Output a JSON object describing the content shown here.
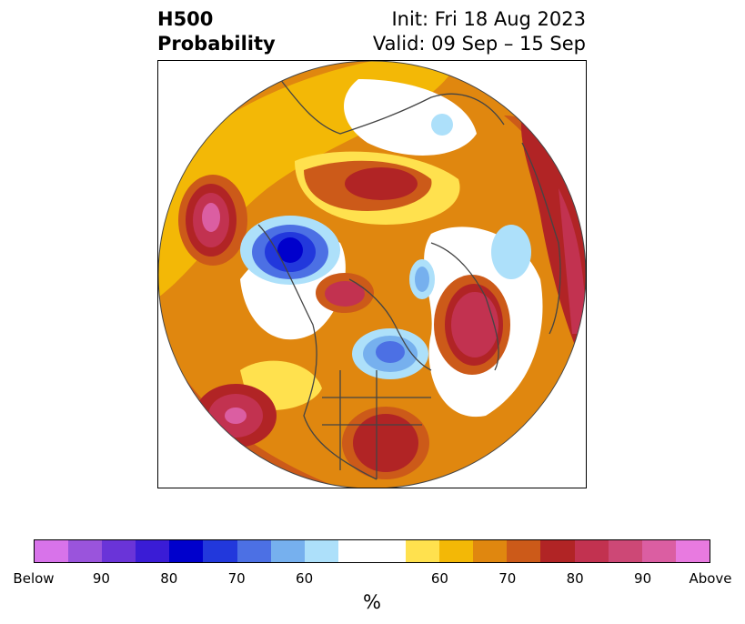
{
  "header": {
    "title_line1": "H500",
    "title_line2": "Probability",
    "init_label": "Init: Fri 18 Aug 2023",
    "valid_label": "Valid: 09 Sep – 15 Sep"
  },
  "colorbar": {
    "colors": [
      "#d873ea",
      "#9a54dc",
      "#6a34d8",
      "#3a1cd6",
      "#0000cc",
      "#2238dc",
      "#4c70e4",
      "#76b0ee",
      "#ade0fa",
      "#ffffff",
      "#ffffff",
      "#ffe14e",
      "#f3b806",
      "#e0870f",
      "#cc5a19",
      "#b12425",
      "#c23250",
      "#cd4876",
      "#db5ea2",
      "#e87ae0"
    ],
    "tick_labels": [
      "Below",
      "90",
      "80",
      "70",
      "60",
      "60",
      "70",
      "80",
      "90",
      "Above"
    ],
    "unit_label": "%"
  },
  "map": {
    "projection": "north-polar-stereographic",
    "field": "500 hPa height anomaly probability",
    "anomaly_colors": {
      "above_60": "#ffe14e",
      "above_65": "#f3b806",
      "above_70": "#e0870f",
      "above_75": "#cc5a19",
      "above_80": "#b12425",
      "above_85": "#c23250",
      "above_90": "#db5ea2",
      "below_60": "#ade0fa",
      "below_65": "#76b0ee",
      "below_70": "#4c70e4",
      "below_80": "#2238dc",
      "below_90": "#0000cc"
    }
  }
}
